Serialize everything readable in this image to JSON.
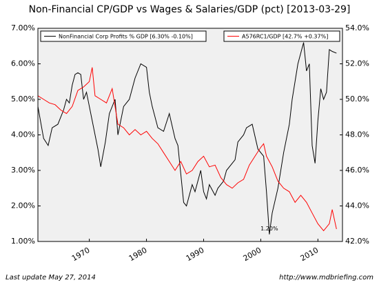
{
  "chart_data": {
    "type": "line",
    "title": "Non-Financial CP/GDP vs Wages & Salaries/GDP (pct) [2013-03-29]",
    "footer_left": "Last update May 27, 2014",
    "footer_right": "http://www.mdbriefing.com",
    "annotations": [
      {
        "text": "1.20%",
        "x": 2001.5,
        "y": 1.2
      }
    ],
    "xlim": [
      1961,
      2014.3
    ],
    "xticks": [
      1970,
      1980,
      1990,
      2000,
      2010
    ],
    "ylim": [
      1,
      7
    ],
    "yticks": [
      {
        "value": 1,
        "label": "1.00%"
      },
      {
        "value": 2,
        "label": "2.00%"
      },
      {
        "value": 3,
        "label": "3.00%"
      },
      {
        "value": 4,
        "label": "4.00%"
      },
      {
        "value": 5,
        "label": "5.00%"
      },
      {
        "value": 6,
        "label": "6.00%"
      },
      {
        "value": 7,
        "label": "7.00%"
      }
    ],
    "y2lim": [
      42,
      54
    ],
    "y2ticks": [
      {
        "value": 42,
        "label": "42.0%"
      },
      {
        "value": 44,
        "label": "44.0%"
      },
      {
        "value": 46,
        "label": "46.0%"
      },
      {
        "value": 48,
        "label": "48.0%"
      },
      {
        "value": 50,
        "label": "50.0%"
      },
      {
        "value": 52,
        "label": "52.0%"
      },
      {
        "value": 54,
        "label": "54.0%"
      }
    ],
    "series": [
      {
        "name": "NonFinancial Corp Profits % GDP [6.30% -0.10%]",
        "color": "#000000",
        "legend": "upper left",
        "x": [
          1961,
          1962,
          1962.8,
          1963.5,
          1964.5,
          1965.5,
          1966,
          1966.5,
          1967,
          1967.5,
          1968,
          1968.5,
          1969,
          1969.5,
          1970.5,
          1971.5,
          1972,
          1972.8,
          1973.5,
          1974.5,
          1975,
          1976,
          1977,
          1978,
          1979,
          1980,
          1980.5,
          1981,
          1982,
          1983,
          1984,
          1985,
          1985.5,
          1986.5,
          1987,
          1988,
          1988.5,
          1989.5,
          1990,
          1990.5,
          1991,
          1992,
          1992.5,
          1993.5,
          1994,
          1995.5,
          1996,
          1997,
          1997.5,
          1998.5,
          1999.5,
          2000.5,
          2001,
          2001.5,
          2002,
          2003,
          2004,
          2005,
          2005.5,
          2006.5,
          2007.5,
          2008,
          2008.5,
          2009,
          2009.5,
          2010,
          2010.5,
          2011,
          2011.5,
          2012,
          2012.5,
          2013.25
        ],
        "values": [
          4.8,
          3.9,
          3.7,
          4.2,
          4.3,
          4.7,
          5.0,
          4.9,
          5.4,
          5.7,
          5.75,
          5.7,
          5.0,
          5.2,
          4.4,
          3.6,
          3.1,
          3.8,
          4.6,
          5.0,
          4.0,
          4.8,
          5.0,
          5.6,
          6.0,
          5.9,
          5.2,
          4.8,
          4.2,
          4.1,
          4.6,
          3.9,
          3.7,
          2.1,
          2.0,
          2.6,
          2.4,
          3.0,
          2.4,
          2.2,
          2.6,
          2.3,
          2.5,
          2.7,
          3.0,
          3.3,
          3.8,
          4.0,
          4.2,
          4.3,
          3.6,
          3.4,
          2.4,
          1.2,
          1.8,
          2.5,
          3.5,
          4.3,
          5.0,
          6.0,
          6.6,
          5.8,
          6.0,
          3.7,
          3.2,
          4.4,
          5.3,
          5.0,
          5.2,
          6.4,
          6.35,
          6.3
        ]
      },
      {
        "name": "A576RC1/GDP [42.7% +0.37%]",
        "color": "#ff0000",
        "axis": "y2",
        "legend": "upper right",
        "x": [
          1961,
          1962,
          1963,
          1964,
          1965,
          1966,
          1967,
          1968,
          1969,
          1970,
          1970.5,
          1971,
          1972,
          1973,
          1974,
          1975,
          1976,
          1977,
          1978,
          1979,
          1980,
          1981,
          1982,
          1983,
          1984,
          1985,
          1986,
          1987,
          1988,
          1989,
          1990,
          1991,
          1992,
          1993,
          1994,
          1995,
          1996,
          1997,
          1998,
          1999,
          2000,
          2000.5,
          2001,
          2002,
          2003,
          2004,
          2005,
          2006,
          2007,
          2008,
          2009,
          2010,
          2011,
          2012,
          2012.5,
          2013.25
        ],
        "values": [
          50.2,
          50.0,
          49.8,
          49.7,
          49.4,
          49.2,
          49.6,
          50.5,
          50.7,
          51.0,
          51.8,
          50.2,
          50.0,
          49.8,
          50.6,
          48.6,
          48.4,
          48.0,
          48.3,
          48.0,
          48.2,
          47.8,
          47.5,
          47.0,
          46.5,
          46.0,
          46.5,
          45.8,
          46.0,
          46.5,
          46.8,
          46.2,
          46.3,
          45.6,
          45.2,
          45.0,
          45.3,
          45.5,
          46.3,
          46.8,
          47.3,
          47.5,
          46.8,
          46.2,
          45.4,
          45.0,
          44.8,
          44.2,
          44.6,
          44.2,
          43.6,
          43.0,
          42.6,
          43.0,
          43.8,
          42.7
        ]
      }
    ]
  }
}
